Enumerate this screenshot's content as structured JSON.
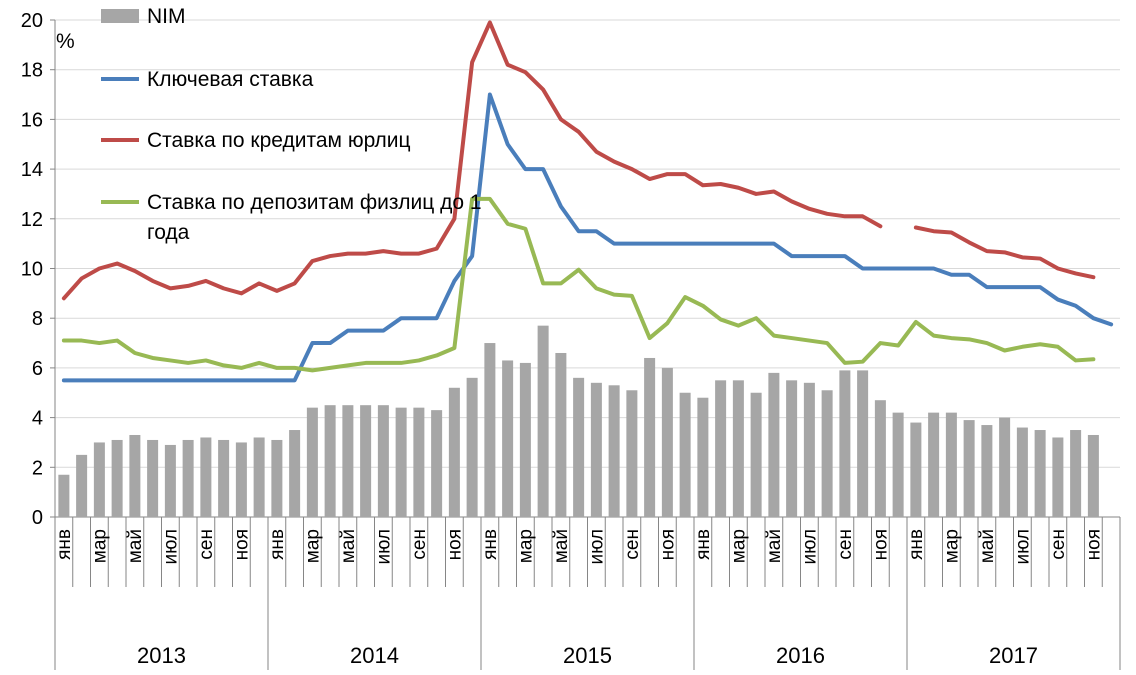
{
  "chart_data": {
    "type": "bar+line",
    "unit_label": "%",
    "ylim": [
      0,
      20
    ],
    "yticks": [
      0,
      2,
      4,
      6,
      8,
      10,
      12,
      14,
      16,
      18,
      20
    ],
    "months": 60,
    "month_tick_labels": [
      "янв",
      "мар",
      "май",
      "июл",
      "сен",
      "ноя"
    ],
    "years": [
      "2013",
      "2014",
      "2015",
      "2016",
      "2017"
    ],
    "grid": true,
    "legend_position": "top-left",
    "series": [
      {
        "name": "NIM",
        "kind": "bar",
        "color": "#a6a6a6",
        "values": [
          1.7,
          2.5,
          3.0,
          3.1,
          3.3,
          3.1,
          2.9,
          3.1,
          3.2,
          3.1,
          3.0,
          3.2,
          3.1,
          3.5,
          4.4,
          4.5,
          4.5,
          4.5,
          4.5,
          4.4,
          4.4,
          4.3,
          5.2,
          5.6,
          7.0,
          6.3,
          6.2,
          7.7,
          6.6,
          5.6,
          5.4,
          5.3,
          5.1,
          6.4,
          6.0,
          5.0,
          4.8,
          5.5,
          5.5,
          5.0,
          5.8,
          5.5,
          5.4,
          5.1,
          5.9,
          5.9,
          4.7,
          4.2,
          3.8,
          4.2,
          4.2,
          3.9,
          3.7,
          4.0,
          3.6,
          3.5,
          3.2,
          3.5,
          3.3,
          null
        ]
      },
      {
        "name": "Ключевая ставка",
        "kind": "line",
        "color": "#4a7ebb",
        "values": [
          5.5,
          5.5,
          5.5,
          5.5,
          5.5,
          5.5,
          5.5,
          5.5,
          5.5,
          5.5,
          5.5,
          5.5,
          5.5,
          5.5,
          7.0,
          7.0,
          7.5,
          7.5,
          7.5,
          8.0,
          8.0,
          8.0,
          9.5,
          10.5,
          17.0,
          15.0,
          14.0,
          14.0,
          12.5,
          11.5,
          11.5,
          11.0,
          11.0,
          11.0,
          11.0,
          11.0,
          11.0,
          11.0,
          11.0,
          11.0,
          11.0,
          10.5,
          10.5,
          10.5,
          10.5,
          10.0,
          10.0,
          10.0,
          10.0,
          10.0,
          9.75,
          9.75,
          9.25,
          9.25,
          9.25,
          9.25,
          8.75,
          8.5,
          8.0,
          7.75
        ]
      },
      {
        "name": "Ставка по кредитам юрлиц",
        "kind": "line",
        "color": "#be4b48",
        "values": [
          8.8,
          9.6,
          10.0,
          10.2,
          9.9,
          9.5,
          9.2,
          9.3,
          9.5,
          9.2,
          9.0,
          9.4,
          9.1,
          9.4,
          10.3,
          10.5,
          10.6,
          10.6,
          10.7,
          10.6,
          10.6,
          10.8,
          12.0,
          18.3,
          19.9,
          18.2,
          17.9,
          17.2,
          16.0,
          15.5,
          14.7,
          14.3,
          14.0,
          13.6,
          13.8,
          13.8,
          13.35,
          13.4,
          13.25,
          13.0,
          13.1,
          12.7,
          12.4,
          12.2,
          12.1,
          12.1,
          11.7,
          null,
          11.65,
          11.5,
          11.45,
          11.05,
          10.7,
          10.65,
          10.45,
          10.4,
          10.0,
          9.8,
          9.65,
          null
        ]
      },
      {
        "name": "Ставка по депозитам физлиц до 1 года",
        "kind": "line",
        "color": "#98b954",
        "values": [
          7.1,
          7.1,
          7.0,
          7.1,
          6.6,
          6.4,
          6.3,
          6.2,
          6.3,
          6.1,
          6.0,
          6.2,
          6.0,
          6.0,
          5.9,
          6.0,
          6.1,
          6.2,
          6.2,
          6.2,
          6.3,
          6.5,
          6.8,
          12.8,
          12.8,
          11.8,
          11.6,
          9.4,
          9.4,
          9.95,
          9.2,
          8.95,
          8.9,
          7.2,
          7.8,
          8.85,
          8.5,
          7.95,
          7.7,
          8.0,
          7.3,
          7.2,
          7.1,
          7.0,
          6.2,
          6.25,
          7.0,
          6.9,
          7.85,
          7.3,
          7.2,
          7.15,
          7.0,
          6.7,
          6.85,
          6.95,
          6.85,
          6.3,
          6.35,
          null
        ]
      }
    ]
  }
}
